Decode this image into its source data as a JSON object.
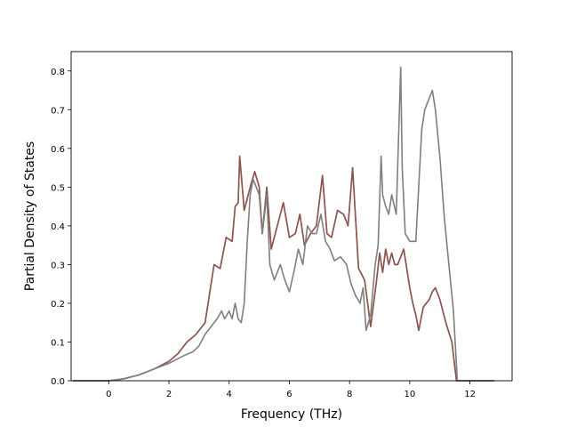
{
  "chart_data": {
    "type": "line",
    "title": "",
    "xlabel": "Frequency (THz)",
    "ylabel": "Partial Density of States",
    "xlim": [
      -1.25,
      13.4
    ],
    "ylim": [
      0,
      0.85
    ],
    "grid": false,
    "xticks": [
      0,
      2,
      4,
      6,
      8,
      10,
      12
    ],
    "yticks": [
      0.0,
      0.1,
      0.2,
      0.3,
      0.4,
      0.5,
      0.6,
      0.7,
      0.8
    ],
    "xtick_labels": [
      "0",
      "2",
      "4",
      "6",
      "8",
      "10",
      "12"
    ],
    "ytick_labels": [
      "0.0",
      "0.1",
      "0.2",
      "0.3",
      "0.4",
      "0.5",
      "0.6",
      "0.7",
      "0.8"
    ],
    "series": [
      {
        "color": "#c77fb6",
        "x": [
          -1.2,
          0,
          0.5,
          1.0,
          1.5,
          2.0,
          2.3,
          2.6,
          2.9,
          3.2,
          3.5,
          3.7,
          3.9,
          4.1,
          4.2,
          4.3,
          4.35,
          4.5,
          4.7,
          4.85,
          5.0,
          5.1,
          5.25,
          5.4,
          5.6,
          5.8,
          6.0,
          6.2,
          6.35,
          6.5,
          6.7,
          6.9,
          7.1,
          7.25,
          7.4,
          7.6,
          7.8,
          7.95,
          8.1,
          8.3,
          8.5,
          8.7,
          8.9,
          9.0,
          9.1,
          9.2,
          9.3,
          9.4,
          9.5,
          9.6,
          9.7,
          9.8,
          9.9,
          10.0,
          10.1,
          10.2,
          10.3,
          10.45,
          10.55,
          10.65,
          10.75,
          10.85,
          11.0,
          11.2,
          11.4,
          11.55,
          11.7,
          12.0,
          12.8
        ],
        "y": [
          0.0,
          0.0,
          0.005,
          0.015,
          0.03,
          0.05,
          0.07,
          0.1,
          0.12,
          0.15,
          0.3,
          0.29,
          0.37,
          0.36,
          0.45,
          0.46,
          0.58,
          0.44,
          0.5,
          0.54,
          0.5,
          0.38,
          0.5,
          0.34,
          0.4,
          0.46,
          0.37,
          0.38,
          0.43,
          0.35,
          0.38,
          0.4,
          0.53,
          0.38,
          0.37,
          0.44,
          0.43,
          0.4,
          0.55,
          0.29,
          0.26,
          0.14,
          0.26,
          0.33,
          0.28,
          0.34,
          0.3,
          0.33,
          0.3,
          0.3,
          0.32,
          0.34,
          0.29,
          0.24,
          0.2,
          0.17,
          0.13,
          0.19,
          0.2,
          0.21,
          0.23,
          0.24,
          0.21,
          0.15,
          0.1,
          0.0,
          0.0,
          0.0,
          0.0
        ]
      },
      {
        "color": "#8c564b",
        "x": [
          -1.2,
          0,
          0.5,
          1.0,
          1.5,
          2.0,
          2.3,
          2.6,
          2.9,
          3.2,
          3.5,
          3.7,
          3.9,
          4.1,
          4.2,
          4.3,
          4.35,
          4.5,
          4.7,
          4.85,
          5.0,
          5.1,
          5.25,
          5.4,
          5.6,
          5.8,
          6.0,
          6.2,
          6.35,
          6.5,
          6.7,
          6.9,
          7.1,
          7.25,
          7.4,
          7.6,
          7.8,
          7.95,
          8.1,
          8.3,
          8.5,
          8.7,
          8.9,
          9.0,
          9.1,
          9.2,
          9.3,
          9.4,
          9.5,
          9.6,
          9.7,
          9.8,
          9.9,
          10.0,
          10.1,
          10.2,
          10.3,
          10.45,
          10.55,
          10.65,
          10.75,
          10.85,
          11.0,
          11.2,
          11.4,
          11.55,
          11.7,
          12.0,
          12.8
        ],
        "y": [
          0.0,
          0.0,
          0.005,
          0.015,
          0.03,
          0.05,
          0.07,
          0.1,
          0.12,
          0.15,
          0.3,
          0.29,
          0.37,
          0.36,
          0.45,
          0.46,
          0.58,
          0.44,
          0.5,
          0.54,
          0.5,
          0.38,
          0.5,
          0.34,
          0.4,
          0.46,
          0.37,
          0.38,
          0.43,
          0.35,
          0.38,
          0.4,
          0.53,
          0.38,
          0.37,
          0.44,
          0.43,
          0.4,
          0.55,
          0.29,
          0.26,
          0.14,
          0.26,
          0.33,
          0.28,
          0.34,
          0.3,
          0.33,
          0.3,
          0.3,
          0.32,
          0.34,
          0.29,
          0.24,
          0.2,
          0.17,
          0.13,
          0.19,
          0.2,
          0.21,
          0.23,
          0.24,
          0.21,
          0.15,
          0.1,
          0.0,
          0.0,
          0.0,
          0.0
        ]
      },
      {
        "color": "#7f7f7f",
        "x": [
          -1.2,
          0,
          0.5,
          1.0,
          1.5,
          2.0,
          2.5,
          2.8,
          3.0,
          3.2,
          3.4,
          3.6,
          3.75,
          3.85,
          4.0,
          4.1,
          4.2,
          4.3,
          4.4,
          4.5,
          4.6,
          4.7,
          4.8,
          5.0,
          5.1,
          5.25,
          5.35,
          5.5,
          5.7,
          5.85,
          6.0,
          6.15,
          6.3,
          6.45,
          6.6,
          6.75,
          6.9,
          7.05,
          7.2,
          7.35,
          7.5,
          7.7,
          7.9,
          8.05,
          8.2,
          8.35,
          8.45,
          8.55,
          8.7,
          8.85,
          8.95,
          9.05,
          9.1,
          9.2,
          9.3,
          9.4,
          9.55,
          9.7,
          9.75,
          9.85,
          10.0,
          10.2,
          10.4,
          10.5,
          10.6,
          10.75,
          10.85,
          11.0,
          11.15,
          11.3,
          11.45,
          11.58,
          11.7,
          12.0,
          12.8
        ],
        "y": [
          0.0,
          0.0,
          0.005,
          0.015,
          0.03,
          0.045,
          0.065,
          0.075,
          0.09,
          0.12,
          0.14,
          0.16,
          0.18,
          0.16,
          0.18,
          0.16,
          0.2,
          0.16,
          0.15,
          0.2,
          0.36,
          0.48,
          0.52,
          0.48,
          0.38,
          0.48,
          0.3,
          0.26,
          0.3,
          0.26,
          0.23,
          0.28,
          0.34,
          0.3,
          0.4,
          0.38,
          0.38,
          0.43,
          0.36,
          0.34,
          0.31,
          0.32,
          0.3,
          0.25,
          0.22,
          0.2,
          0.24,
          0.13,
          0.17,
          0.3,
          0.35,
          0.58,
          0.48,
          0.45,
          0.43,
          0.48,
          0.43,
          0.81,
          0.55,
          0.38,
          0.36,
          0.36,
          0.65,
          0.7,
          0.72,
          0.75,
          0.7,
          0.58,
          0.42,
          0.3,
          0.18,
          0.0,
          0.0,
          0.0,
          0.0
        ]
      }
    ]
  }
}
